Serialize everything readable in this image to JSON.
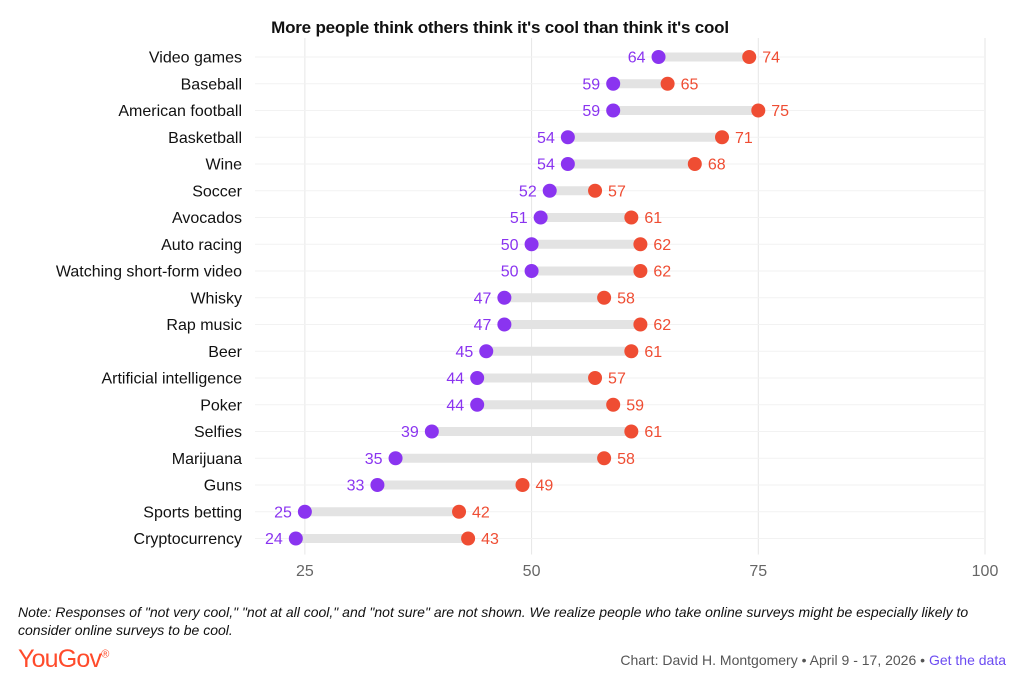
{
  "chart_data": {
    "type": "dumbbell",
    "title": "More people think others think it's cool than think it's cool",
    "xlim": [
      19.5,
      100
    ],
    "xticks": [
      25,
      50,
      75,
      100
    ],
    "grid": true,
    "colors": {
      "low": "#8a34f0",
      "high": "#ef4d33",
      "connector": "#e3e3e3",
      "grid": "#e6e6e6",
      "tick": "#666666"
    },
    "categories": [
      "Video games",
      "Baseball",
      "American football",
      "Basketball",
      "Wine",
      "Soccer",
      "Avocados",
      "Auto racing",
      "Watching short-form video",
      "Whisky",
      "Rap music",
      "Beer",
      "Artificial intelligence",
      "Poker",
      "Selfies",
      "Marijuana",
      "Guns",
      "Sports betting",
      "Cryptocurrency"
    ],
    "series": [
      {
        "values": [
          64,
          59,
          59,
          54,
          54,
          52,
          51,
          50,
          50,
          47,
          47,
          45,
          44,
          44,
          39,
          35,
          33,
          25,
          24
        ]
      },
      {
        "values": [
          74,
          65,
          75,
          71,
          68,
          57,
          61,
          62,
          62,
          58,
          62,
          61,
          57,
          59,
          61,
          58,
          49,
          42,
          43
        ]
      }
    ]
  },
  "note": "Note: Responses of \"not very cool,\" \"not at all cool,\" and \"not sure\" are not shown. We realize people who take online surveys might be especially likely to consider online surveys to be cool.",
  "footer": {
    "logo_text": "YouGov",
    "logo_mark": "®",
    "credit": "Chart: David H. Montgomery • April 9 - 17, 2026 • ",
    "get_data": "Get the data"
  }
}
